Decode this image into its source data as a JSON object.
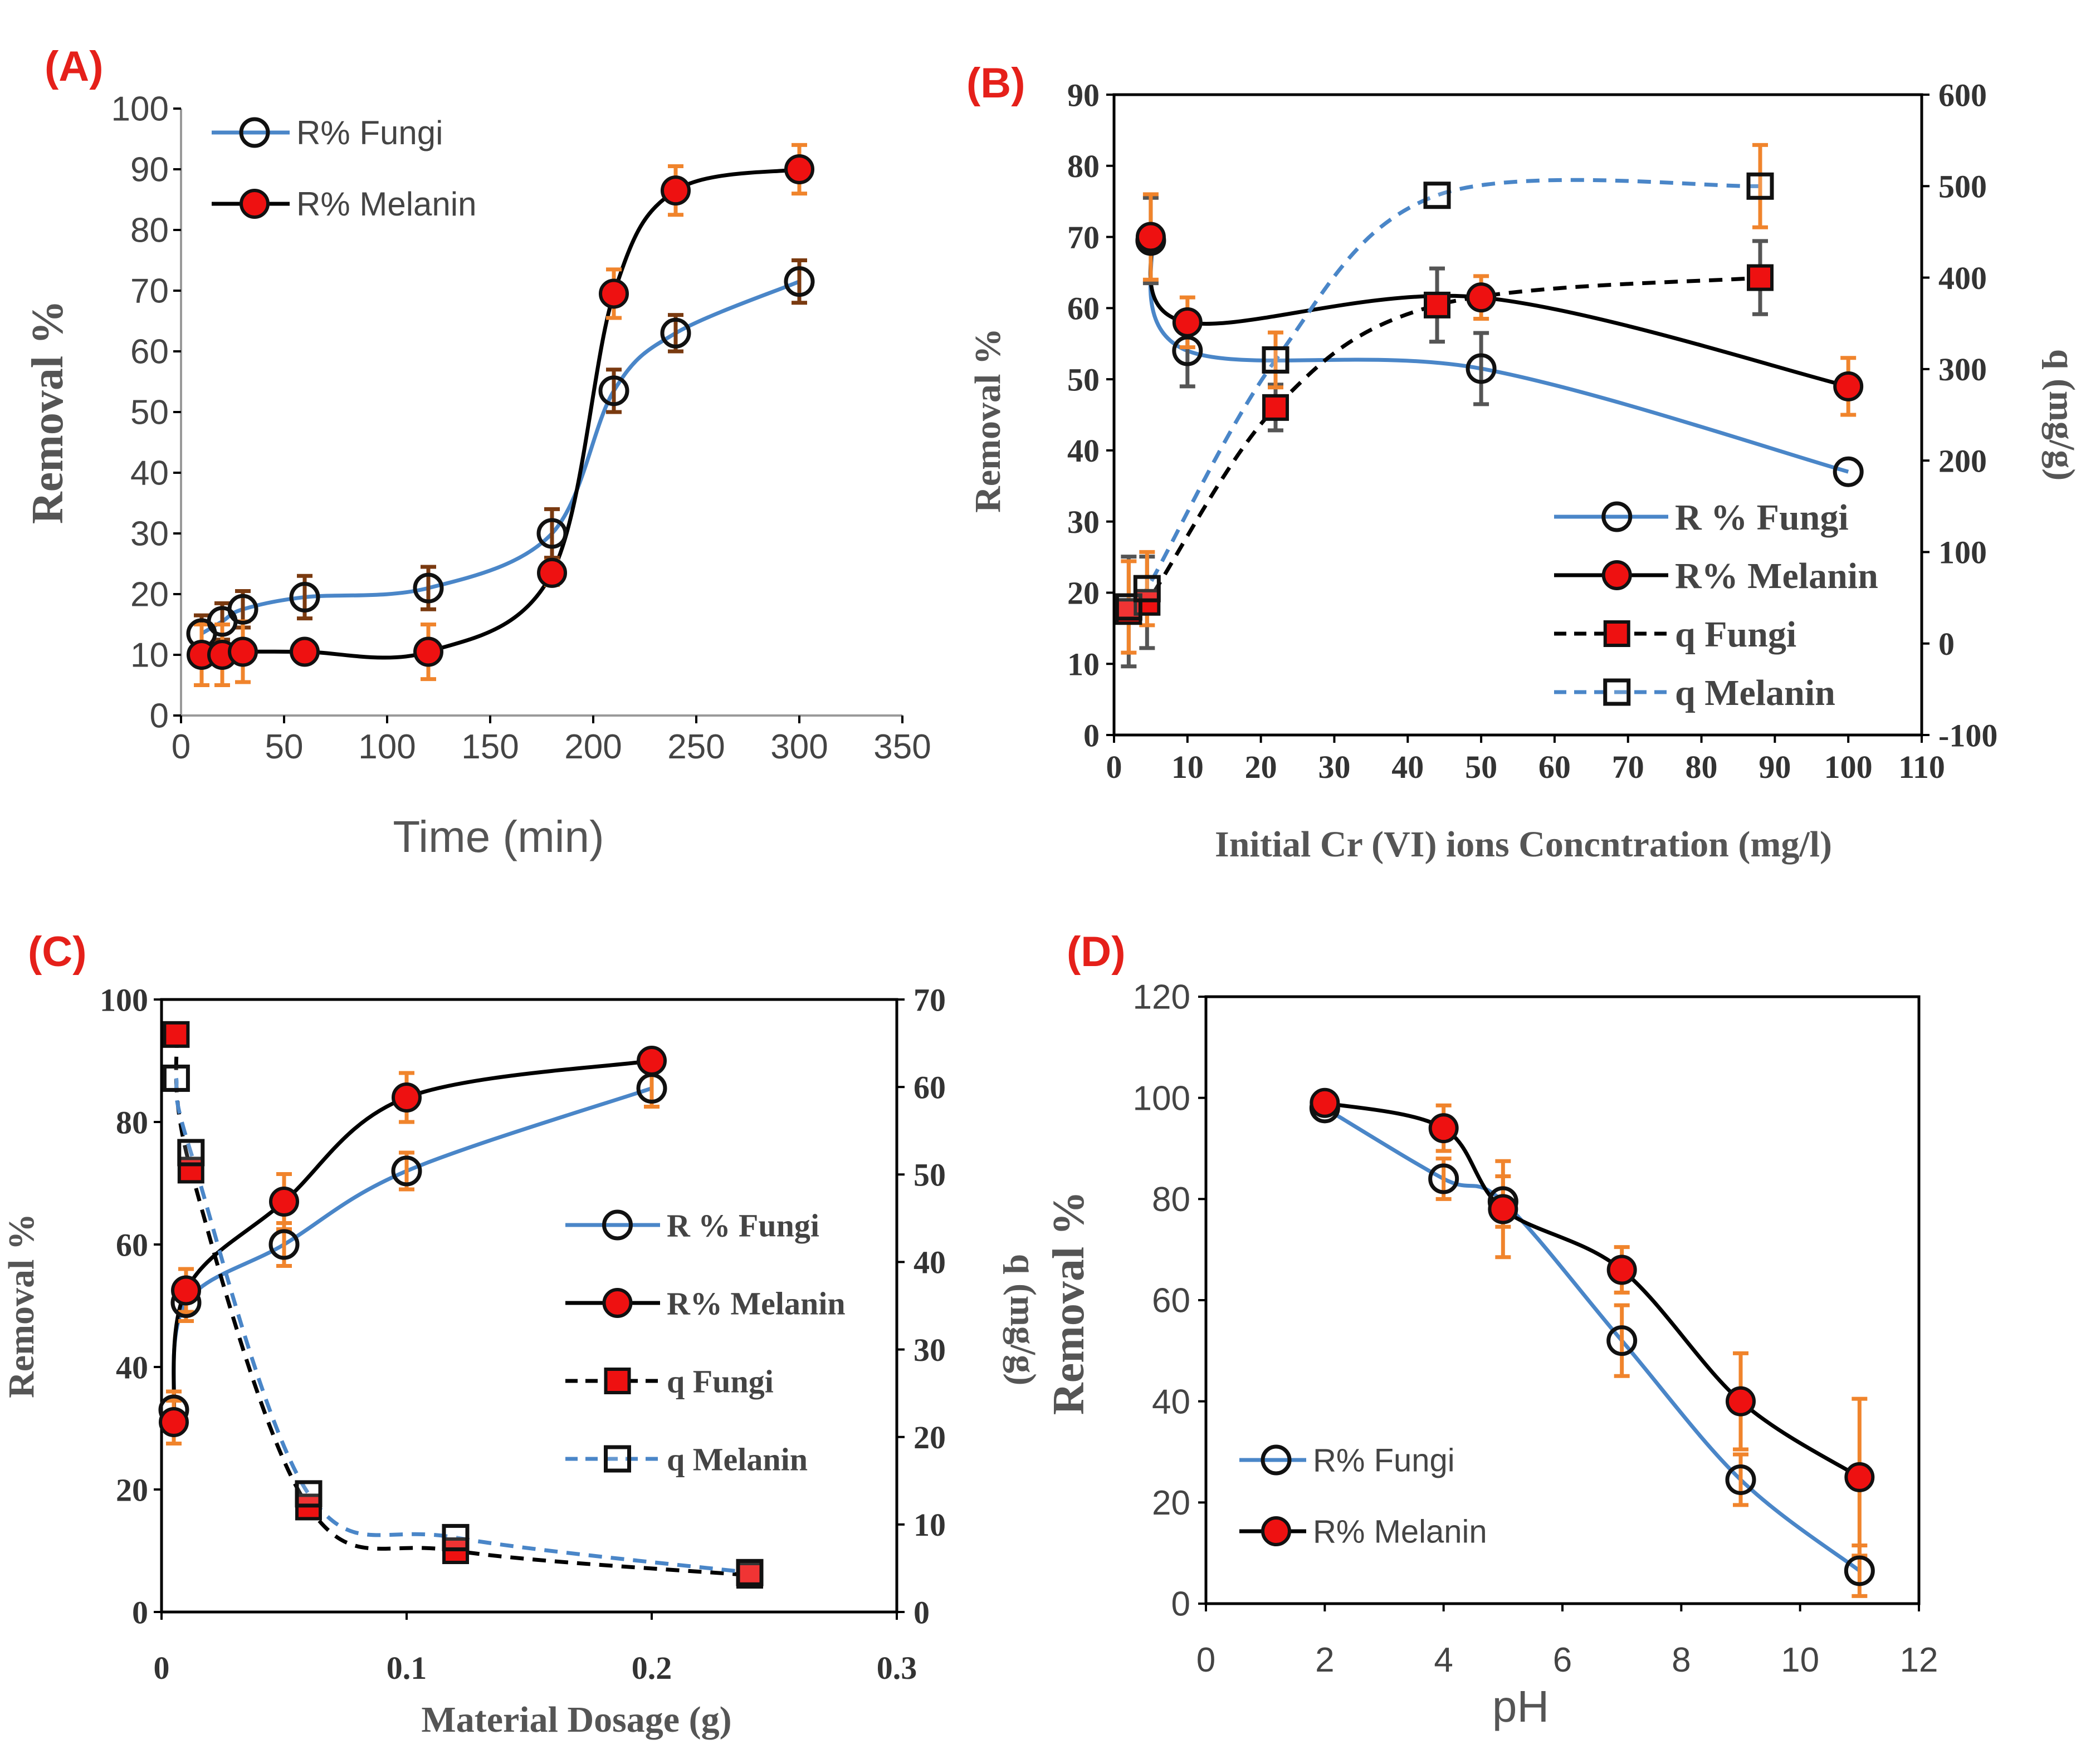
{
  "colors": {
    "fungi": "#4a86c8",
    "melanin": "#000000",
    "marker_red": "#ee1111",
    "error_orange": "#f0842c",
    "error_dark": "#7a3a10",
    "error_gray": "#555555",
    "panel_label": "#e5201a"
  },
  "chart_data": [
    {
      "id": "A",
      "type": "line",
      "panel_label": "(A)",
      "xlabel": "Time (min)",
      "ylabel": "Removal %",
      "xlim": [
        0,
        350
      ],
      "ylim": [
        0,
        100
      ],
      "x_ticks": [
        "0",
        "50",
        "100",
        "150",
        "200",
        "250",
        "300",
        "350"
      ],
      "y_ticks": [
        "0",
        "10",
        "20",
        "30",
        "40",
        "50",
        "60",
        "70",
        "80",
        "90",
        "100"
      ],
      "legend": [
        "R% Fungi",
        "R% Melanin"
      ],
      "series": [
        {
          "name": "R% Fungi",
          "marker": "open-circle",
          "dashed": false,
          "x": [
            10,
            20,
            30,
            60,
            120,
            180,
            210,
            240,
            300
          ],
          "y": [
            13.5,
            15.5,
            17.5,
            19.5,
            21,
            30,
            53.5,
            63,
            71.5
          ],
          "err": [
            3,
            3,
            3,
            3.5,
            3.5,
            4,
            3.5,
            3,
            3.5
          ]
        },
        {
          "name": "R% Melanin",
          "marker": "filled-circle",
          "dashed": false,
          "x": [
            10,
            20,
            30,
            60,
            120,
            180,
            210,
            240,
            300
          ],
          "y": [
            10,
            10,
            10.5,
            10.5,
            10.5,
            23.5,
            69.5,
            86.5,
            90
          ],
          "err": [
            5,
            5,
            5,
            1,
            4.5,
            2,
            4,
            4,
            4
          ]
        }
      ]
    },
    {
      "id": "B",
      "type": "line",
      "panel_label": "(B)",
      "xlabel": "Initial Cr (VI) ions Concntration (mg/l)",
      "ylabel": "Removal %",
      "y2label": "q (mg/g)",
      "xlim": [
        0,
        110
      ],
      "ylim": [
        0,
        90
      ],
      "y2lim": [
        -100,
        600
      ],
      "x_ticks": [
        "0",
        "10",
        "20",
        "30",
        "40",
        "50",
        "60",
        "70",
        "80",
        "90",
        "100",
        "110"
      ],
      "y_ticks": [
        "0",
        "10",
        "20",
        "30",
        "40",
        "50",
        "60",
        "70",
        "80",
        "90"
      ],
      "y2_ticks": [
        "-100",
        "0",
        "100",
        "200",
        "300",
        "400",
        "500",
        "600"
      ],
      "legend": [
        "R % Fungi",
        "R% Melanin",
        "q Fungi",
        "q Melanin"
      ],
      "series": [
        {
          "name": "R % Fungi",
          "marker": "open-circle",
          "dashed": false,
          "axis": "left",
          "x": [
            5,
            10,
            50,
            100
          ],
          "y": [
            69.5,
            54,
            51.5,
            37
          ],
          "err": [
            6,
            5,
            5,
            0
          ]
        },
        {
          "name": "R% Melanin",
          "marker": "filled-circle",
          "dashed": false,
          "axis": "left",
          "x": [
            5,
            10,
            50,
            100
          ],
          "y": [
            70,
            58,
            61.5,
            49
          ],
          "err": [
            6,
            3.5,
            3,
            4
          ]
        },
        {
          "name": "q Fungi",
          "marker": "filled-square",
          "dashed": true,
          "axis": "right",
          "x": [
            2,
            4.5,
            22,
            44,
            88
          ],
          "y": [
            35,
            45,
            258,
            370,
            400
          ],
          "err": [
            60,
            50,
            25,
            40,
            40
          ]
        },
        {
          "name": "q Melanin",
          "marker": "open-square",
          "dashed": true,
          "axis": "right",
          "x": [
            2,
            4.5,
            22,
            44,
            88
          ],
          "y": [
            40,
            60,
            310,
            490,
            500
          ],
          "err": [
            50,
            40,
            30,
            0,
            45
          ]
        }
      ]
    },
    {
      "id": "C",
      "type": "line",
      "panel_label": "(C)",
      "xlabel": "Material Dosage (g)",
      "ylabel": "Removal %",
      "y2label": "q (mg/g)",
      "xlim": [
        0,
        0.3
      ],
      "ylim": [
        0,
        100
      ],
      "y2lim": [
        0,
        70
      ],
      "x_ticks": [
        "0",
        "0.1",
        "0.2",
        "0.3"
      ],
      "y_ticks": [
        "0",
        "20",
        "40",
        "60",
        "80",
        "100"
      ],
      "y2_ticks": [
        "0",
        "10",
        "20",
        "30",
        "40",
        "50",
        "60",
        "70"
      ],
      "legend": [
        "R % Fungi",
        "R% Melanin",
        "q Fungi",
        "q Melanin"
      ],
      "series": [
        {
          "name": "R % Fungi",
          "marker": "open-circle",
          "dashed": false,
          "axis": "left",
          "x": [
            0.005,
            0.01,
            0.05,
            0.1,
            0.2
          ],
          "y": [
            33,
            50.5,
            60,
            72,
            85.5
          ],
          "err": [
            3,
            3,
            3.5,
            3,
            3
          ]
        },
        {
          "name": "R% Melanin",
          "marker": "filled-circle",
          "dashed": false,
          "axis": "left",
          "x": [
            0.005,
            0.01,
            0.05,
            0.1,
            0.2
          ],
          "y": [
            31,
            52.5,
            67,
            84,
            90
          ],
          "err": [
            3.5,
            3.5,
            4.5,
            4,
            0
          ]
        },
        {
          "name": "q Fungi",
          "marker": "filled-square",
          "dashed": true,
          "axis": "right",
          "x": [
            0.006,
            0.012,
            0.06,
            0.12,
            0.24
          ],
          "y": [
            66,
            50.5,
            12,
            7,
            4.2
          ],
          "err": [
            0,
            0,
            0,
            0,
            0
          ]
        },
        {
          "name": "q Melanin",
          "marker": "open-square",
          "dashed": true,
          "axis": "right",
          "x": [
            0.006,
            0.012,
            0.06,
            0.12,
            0.24
          ],
          "y": [
            61,
            52.5,
            13.5,
            8.5,
            4.5
          ],
          "err": [
            0,
            0,
            0,
            0,
            0
          ]
        }
      ]
    },
    {
      "id": "D",
      "type": "line",
      "panel_label": "(D)",
      "xlabel": "pH",
      "ylabel": "Removal %",
      "xlim": [
        0,
        12
      ],
      "ylim": [
        0,
        120
      ],
      "x_ticks": [
        "0",
        "2",
        "4",
        "6",
        "8",
        "10",
        "12"
      ],
      "y_ticks": [
        "0",
        "20",
        "40",
        "60",
        "80",
        "100",
        "120"
      ],
      "legend": [
        "R% Fungi",
        "R% Melanin"
      ],
      "series": [
        {
          "name": "R% Fungi",
          "marker": "open-circle",
          "dashed": false,
          "x": [
            2,
            4,
            5,
            7,
            9,
            11
          ],
          "y": [
            98,
            84,
            79.5,
            52,
            24.5,
            6.5
          ],
          "err": [
            1,
            4,
            5,
            7,
            5,
            5
          ]
        },
        {
          "name": "R% Melanin",
          "marker": "filled-circle",
          "dashed": false,
          "x": [
            2,
            4,
            5,
            7,
            9,
            11
          ],
          "y": [
            99,
            94,
            78,
            66,
            40,
            25
          ],
          "err": [
            1,
            4.5,
            9.5,
            4.5,
            9.5,
            15.5
          ]
        }
      ]
    }
  ]
}
